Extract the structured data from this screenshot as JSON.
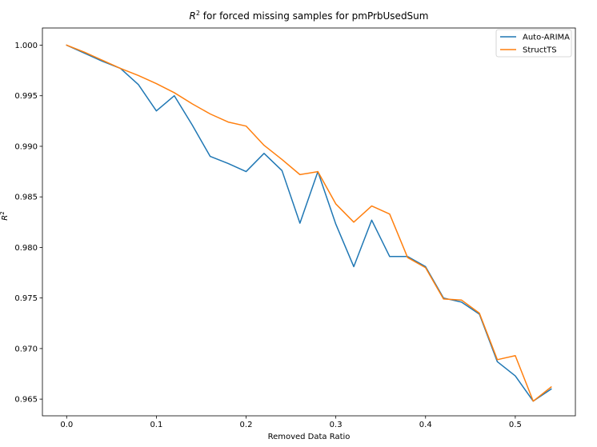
{
  "chart_data": {
    "type": "line",
    "title_prefix": "R",
    "title_superscript": "2",
    "title_suffix": " for forced missing samples for pmPrbUsedSum",
    "xlabel": "Removed Data Ratio",
    "ylabel_prefix": "R",
    "ylabel_superscript": "2",
    "xlim": [
      -0.027,
      0.567
    ],
    "ylim": [
      0.96335,
      1.0017
    ],
    "x_ticks": [
      0.0,
      0.1,
      0.2,
      0.3,
      0.4,
      0.5
    ],
    "x_tick_labels": [
      "0.0",
      "0.1",
      "0.2",
      "0.3",
      "0.4",
      "0.5"
    ],
    "y_ticks": [
      0.965,
      0.97,
      0.975,
      0.98,
      0.985,
      0.99,
      0.995,
      1.0
    ],
    "y_tick_labels": [
      "0.965",
      "0.970",
      "0.975",
      "0.980",
      "0.985",
      "0.990",
      "0.995",
      "1.000"
    ],
    "grid": false,
    "legend_placement": "top-right",
    "x": [
      0.0,
      0.02,
      0.04,
      0.06,
      0.08,
      0.1,
      0.12,
      0.14,
      0.16,
      0.18,
      0.2,
      0.22,
      0.24,
      0.26,
      0.28,
      0.3,
      0.32,
      0.34,
      0.36,
      0.38,
      0.4,
      0.42,
      0.44,
      0.46,
      0.48,
      0.5,
      0.52,
      0.54
    ],
    "series": [
      {
        "name": "Auto-ARIMA",
        "color": "#1f77b4",
        "values": [
          1.0,
          0.9992,
          0.9984,
          0.9977,
          0.9961,
          0.9935,
          0.995,
          0.9921,
          0.989,
          0.9883,
          0.9875,
          0.9893,
          0.9876,
          0.9824,
          0.9875,
          0.9823,
          0.9781,
          0.9827,
          0.9791,
          0.9791,
          0.9781,
          0.975,
          0.9746,
          0.9734,
          0.9687,
          0.9673,
          0.9648,
          0.966
        ]
      },
      {
        "name": "StructTS",
        "color": "#ff7f0e",
        "values": [
          1.0,
          0.9993,
          0.9985,
          0.9977,
          0.997,
          0.9962,
          0.9953,
          0.9942,
          0.9932,
          0.9924,
          0.992,
          0.9901,
          0.9887,
          0.9872,
          0.9875,
          0.9843,
          0.9825,
          0.9841,
          0.9833,
          0.979,
          0.978,
          0.9749,
          0.9748,
          0.9735,
          0.9689,
          0.9693,
          0.9648,
          0.9662
        ]
      }
    ]
  }
}
